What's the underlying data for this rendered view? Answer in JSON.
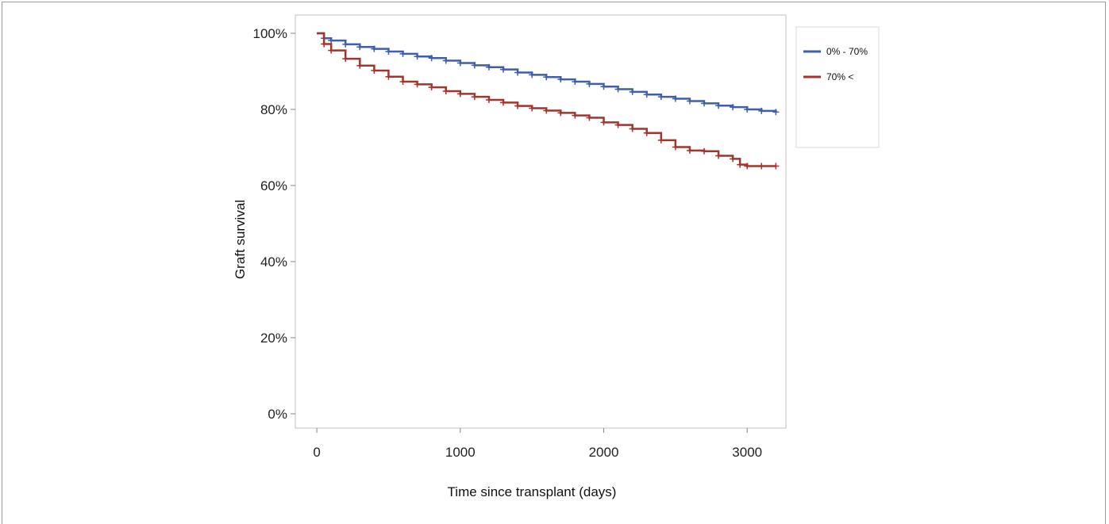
{
  "chart_data": {
    "type": "line",
    "title": "",
    "xlabel": "Time since transplant (days)",
    "ylabel": "Graft survival",
    "xlim": [
      -150,
      3270
    ],
    "ylim": [
      0,
      100
    ],
    "x_ticks": [
      {
        "value": 0,
        "label": "0"
      },
      {
        "value": 1000,
        "label": "1000"
      },
      {
        "value": 2000,
        "label": "2000"
      },
      {
        "value": 3000,
        "label": "3000"
      }
    ],
    "y_ticks": [
      {
        "value": 0,
        "label": "0%"
      },
      {
        "value": 20,
        "label": "20%"
      },
      {
        "value": 40,
        "label": "40%"
      },
      {
        "value": 60,
        "label": "60%"
      },
      {
        "value": 80,
        "label": "80%"
      },
      {
        "value": 100,
        "label": "100%"
      }
    ],
    "grid": false,
    "legend_position": "right",
    "series": [
      {
        "name": "0% - 70%",
        "color": "#3f5fa8",
        "x": [
          0,
          50,
          100,
          200,
          300,
          400,
          500,
          600,
          700,
          800,
          900,
          1000,
          1100,
          1200,
          1300,
          1400,
          1500,
          1600,
          1700,
          1800,
          1900,
          2000,
          2100,
          2200,
          2300,
          2400,
          2500,
          2600,
          2700,
          2800,
          2900,
          3000,
          3100,
          3200
        ],
        "y": [
          100,
          98.7,
          98.1,
          97.1,
          96.4,
          95.9,
          95.2,
          94.6,
          93.9,
          93.5,
          92.8,
          92.2,
          91.6,
          91.1,
          90.5,
          89.7,
          89.1,
          88.5,
          87.9,
          87.3,
          86.7,
          86.0,
          85.3,
          84.6,
          83.9,
          83.3,
          82.8,
          82.2,
          81.6,
          81.0,
          80.6,
          80.0,
          79.6,
          79.3
        ]
      },
      {
        "name": "70% <",
        "color": "#a3342b",
        "x": [
          0,
          50,
          100,
          200,
          300,
          400,
          500,
          600,
          700,
          800,
          900,
          1000,
          1100,
          1200,
          1300,
          1400,
          1500,
          1600,
          1700,
          1800,
          1900,
          2000,
          2100,
          2200,
          2300,
          2400,
          2500,
          2600,
          2700,
          2800,
          2900,
          2950,
          3000,
          3100,
          3200
        ],
        "y": [
          100,
          97.2,
          95.5,
          93.3,
          91.5,
          90.2,
          88.6,
          87.3,
          86.6,
          85.8,
          84.8,
          84.1,
          83.3,
          82.5,
          81.8,
          80.9,
          80.3,
          79.7,
          79.1,
          78.4,
          77.8,
          76.6,
          75.9,
          74.9,
          73.8,
          71.9,
          70.1,
          69.2,
          69.0,
          67.8,
          67.0,
          65.5,
          65.1,
          65.1,
          65.1
        ]
      }
    ]
  }
}
